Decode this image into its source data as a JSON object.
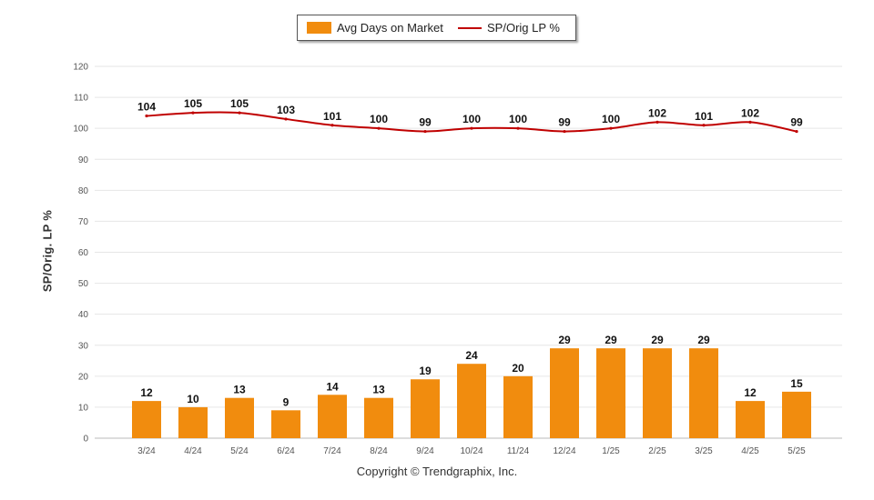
{
  "chart_data": {
    "type": "bar",
    "categories": [
      "3/24",
      "4/24",
      "5/24",
      "6/24",
      "7/24",
      "8/24",
      "9/24",
      "10/24",
      "11/24",
      "12/24",
      "1/25",
      "2/25",
      "3/25",
      "4/25",
      "5/25"
    ],
    "series": [
      {
        "name": "Avg Days on Market",
        "type": "bar",
        "color": "#f18c0e",
        "values": [
          12,
          10,
          13,
          9,
          14,
          13,
          19,
          24,
          20,
          29,
          29,
          29,
          29,
          12,
          15
        ]
      },
      {
        "name": "SP/Orig LP %",
        "type": "line",
        "color": "#c00000",
        "values": [
          104,
          105,
          105,
          103,
          101,
          100,
          99,
          100,
          100,
          99,
          100,
          102,
          101,
          102,
          99
        ]
      }
    ],
    "ylabel": "SP/Orig. LP %",
    "ylim": [
      0,
      120
    ],
    "yticks": [
      0,
      10,
      20,
      30,
      40,
      50,
      60,
      70,
      80,
      90,
      100,
      110,
      120
    ],
    "grid": true,
    "legend": "top-center"
  },
  "footer": {
    "copyright": "Copyright © Trendgraphix, Inc."
  }
}
